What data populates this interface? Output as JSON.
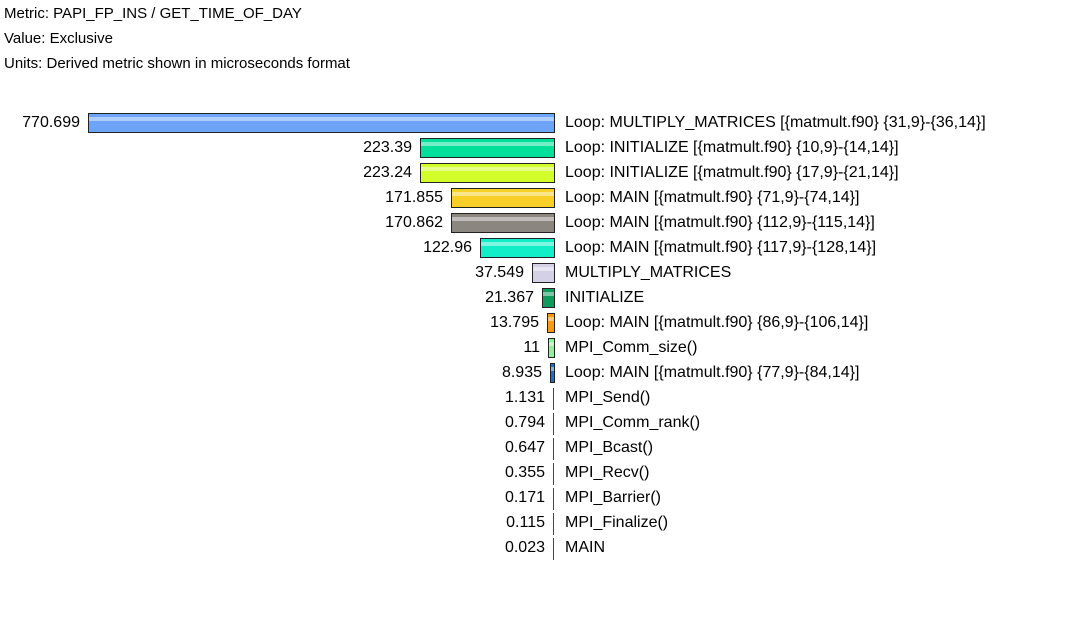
{
  "header": {
    "metric": "Metric: PAPI_FP_INS / GET_TIME_OF_DAY",
    "value": "Value: Exclusive",
    "units": "Units: Derived metric shown in microseconds format"
  },
  "chart_data": {
    "type": "bar",
    "orientation": "horizontal",
    "title": "Metric: PAPI_FP_INS / GET_TIME_OF_DAY",
    "subtitle": "Value: Exclusive; Units: Derived metric shown in microseconds format",
    "xlabel": "",
    "ylabel": "",
    "xlim": [
      0,
      770.699
    ],
    "grid": false,
    "legend": "none",
    "categories": [
      "Loop: MULTIPLY_MATRICES [{matmult.f90} {31,9}-{36,14}]",
      "Loop: INITIALIZE [{matmult.f90} {10,9}-{14,14}]",
      "Loop: INITIALIZE [{matmult.f90} {17,9}-{21,14}]",
      "Loop: MAIN [{matmult.f90} {71,9}-{74,14}]",
      "Loop: MAIN [{matmult.f90} {112,9}-{115,14}]",
      "Loop: MAIN [{matmult.f90} {117,9}-{128,14}]",
      "MULTIPLY_MATRICES",
      "INITIALIZE",
      "Loop: MAIN [{matmult.f90} {86,9}-{106,14}]",
      "MPI_Comm_size()",
      "Loop: MAIN [{matmult.f90} {77,9}-{84,14}]",
      "MPI_Send()",
      "MPI_Comm_rank()",
      "MPI_Bcast()",
      "MPI_Recv()",
      "MPI_Barrier()",
      "MPI_Finalize()",
      "MAIN"
    ],
    "values": [
      770.699,
      223.39,
      223.24,
      171.855,
      170.862,
      122.96,
      37.549,
      21.367,
      13.795,
      11,
      8.935,
      1.131,
      0.794,
      0.647,
      0.355,
      0.171,
      0.115,
      0.023
    ],
    "value_labels": [
      "770.699",
      "223.39",
      "223.24",
      "171.855",
      "170.862",
      "122.96",
      "37.549",
      "21.367",
      "13.795",
      "11",
      "8.935",
      "1.131",
      "0.794",
      "0.647",
      "0.355",
      "0.171",
      "0.115",
      "0.023"
    ],
    "colors": [
      "#6ea4f7",
      "#00e09a",
      "#d2ff2a",
      "#f8d028",
      "#8c8680",
      "#12eec8",
      "#d4d0e6",
      "#0e9a5c",
      "#ff9a10",
      "#90f0a0",
      "#1a70c8",
      "#444444",
      "#444444",
      "#444444",
      "#444444",
      "#444444",
      "#444444",
      "#444444"
    ]
  }
}
